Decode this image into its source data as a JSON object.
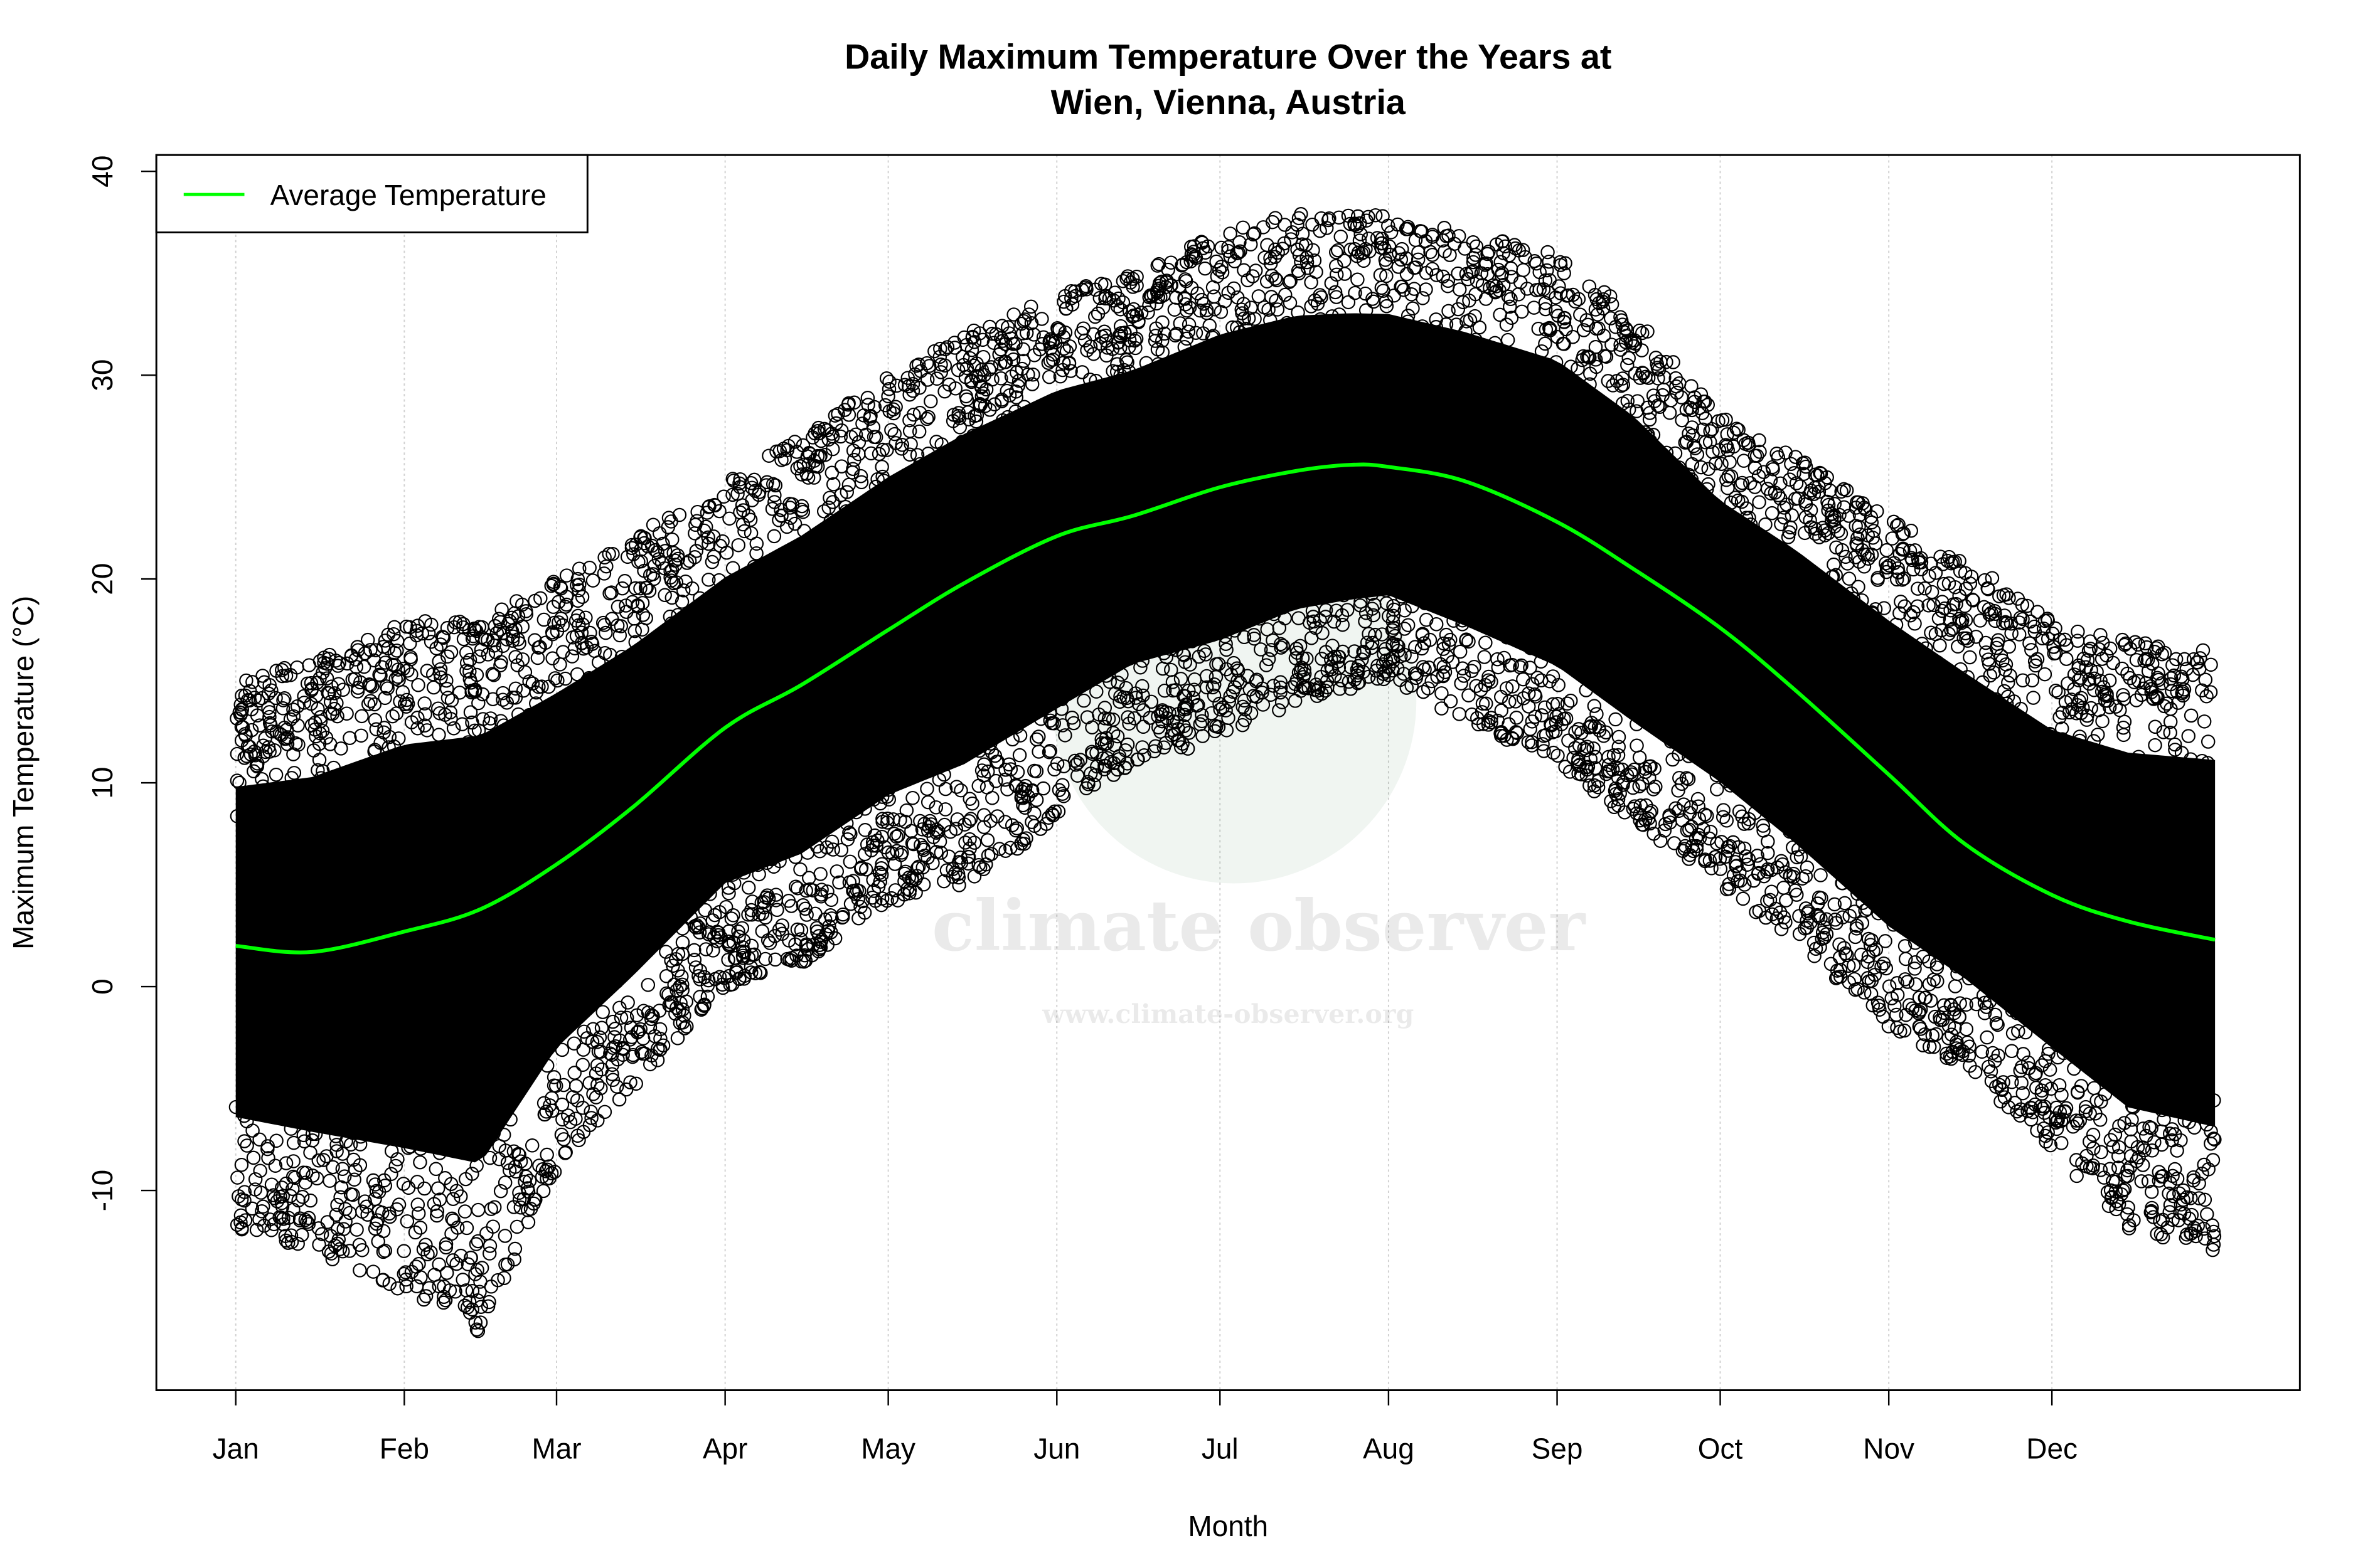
{
  "chart_data": {
    "type": "scatter",
    "title": [
      "Daily Maximum Temperature Over the Years at",
      "Wien, Vienna, Austria"
    ],
    "xlabel": "Month",
    "ylabel": "Maximum Temperature (°C)",
    "x_unit": "day of year",
    "xlim": [
      -13.6,
      380.6
    ],
    "ylim": [
      -19.8,
      40.8
    ],
    "x_ticks": [
      {
        "day": 1,
        "label": "Jan"
      },
      {
        "day": 32,
        "label": "Feb"
      },
      {
        "day": 60,
        "label": "Mar"
      },
      {
        "day": 91,
        "label": "Apr"
      },
      {
        "day": 121,
        "label": "May"
      },
      {
        "day": 152,
        "label": "Jun"
      },
      {
        "day": 182,
        "label": "Jul"
      },
      {
        "day": 213,
        "label": "Aug"
      },
      {
        "day": 244,
        "label": "Sep"
      },
      {
        "day": 274,
        "label": "Oct"
      },
      {
        "day": 305,
        "label": "Nov"
      },
      {
        "day": 335,
        "label": "Dec"
      }
    ],
    "y_ticks": [
      -10,
      0,
      10,
      20,
      30,
      40
    ],
    "grid": "vertical dotted lines at month ticks",
    "legend": {
      "position": "top-left",
      "entries": [
        {
          "label": "Average Temperature",
          "color": "#00ff00"
        }
      ]
    },
    "series": [
      {
        "name": "Average Temperature",
        "type": "line",
        "color": "#00ff00",
        "x": [
          1,
          15,
          32,
          46,
          60,
          74,
          91,
          105,
          121,
          135,
          152,
          166,
          182,
          196,
          206,
          213,
          227,
          244,
          258,
          274,
          288,
          305,
          319,
          335,
          349,
          365
        ],
        "y": [
          2.0,
          1.7,
          2.7,
          3.8,
          6.0,
          8.8,
          12.7,
          14.8,
          17.5,
          19.8,
          22.1,
          23.1,
          24.5,
          25.3,
          25.6,
          25.5,
          24.8,
          22.8,
          20.5,
          17.6,
          14.5,
          10.4,
          7.0,
          4.5,
          3.2,
          2.3
        ]
      },
      {
        "type": "scatter",
        "marker": "open circle",
        "color": "#000000",
        "envelope_x": [
          1,
          15,
          32,
          46,
          60,
          74,
          91,
          105,
          121,
          135,
          152,
          166,
          182,
          196,
          213,
          227,
          244,
          258,
          274,
          288,
          305,
          319,
          335,
          349,
          365
        ],
        "envelope_min": [
          -12,
          -13,
          -15,
          -17,
          -9,
          -5,
          0,
          1,
          4,
          5,
          8,
          11,
          12,
          14,
          15,
          13,
          11,
          8,
          5,
          2,
          -2,
          -4,
          -8,
          -12,
          -13
        ],
        "envelope_max": [
          15,
          16,
          18,
          18,
          20,
          22,
          25,
          27,
          30,
          32,
          34,
          35,
          37,
          38,
          38,
          37,
          36,
          33,
          28,
          26,
          23,
          21,
          18,
          17,
          17
        ]
      }
    ]
  },
  "watermark": {
    "name": "climate observer",
    "url": "www.climate-observer.org"
  }
}
